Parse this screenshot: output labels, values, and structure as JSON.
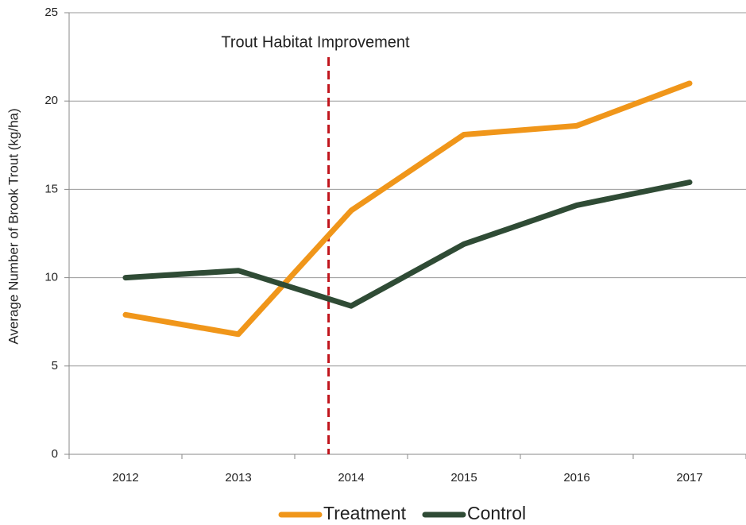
{
  "chart_data": {
    "type": "line",
    "annotation": "Trout Habitat Improvement",
    "y_label": "Average Number of Brook Trout (kg/ha)",
    "categories": [
      "2012",
      "2013",
      "2014",
      "2015",
      "2016",
      "2017"
    ],
    "series": [
      {
        "name": "Treatment",
        "color": "#f0961a",
        "values": [
          7.9,
          6.8,
          13.8,
          18.1,
          18.6,
          21.0
        ]
      },
      {
        "name": "Control",
        "color": "#2f4b35",
        "values": [
          10.0,
          10.4,
          8.4,
          11.9,
          14.1,
          15.4
        ]
      }
    ],
    "ylim": [
      0,
      25
    ],
    "yticks": [
      0,
      5,
      10,
      15,
      20,
      25
    ],
    "grid": true,
    "legend": "bottom"
  }
}
